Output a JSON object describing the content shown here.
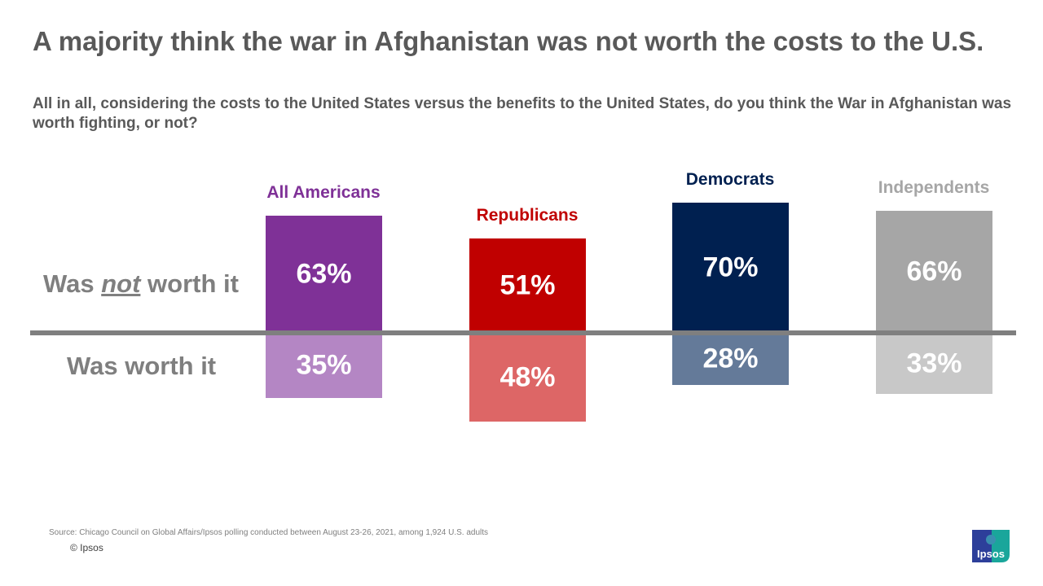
{
  "title": "A majority think the war in Afghanistan was not worth the costs to the U.S.",
  "subtitle": "All in all, considering the costs to the United States versus the benefits to the United States, do you think the War in Afghanistan was worth fighting, or not?",
  "row_labels": {
    "not_worth_prefix": "Was ",
    "not_worth_emph": "not",
    "not_worth_suffix": " worth it",
    "worth": "Was worth it"
  },
  "chart_data": {
    "type": "bar",
    "categories": [
      "All Americans",
      "Republicans",
      "Democrats",
      "Independents"
    ],
    "series": [
      {
        "name": "Was not worth it",
        "values": [
          63,
          51,
          70,
          66
        ],
        "colors": [
          "#7F3197",
          "#C00000",
          "#002050",
          "#A6A6A6"
        ]
      },
      {
        "name": "Was worth it",
        "values": [
          35,
          48,
          28,
          33
        ],
        "colors": [
          "#B486C4",
          "#DD6666",
          "#647A99",
          "#C8C8C8"
        ]
      }
    ],
    "value_labels_not_worth": [
      "63%",
      "51%",
      "70%",
      "66%"
    ],
    "value_labels_worth": [
      "35%",
      "48%",
      "28%",
      "33%"
    ],
    "category_colors": [
      "#7F3197",
      "#C00000",
      "#002050",
      "#A6A6A6"
    ],
    "layout": "diverging around a horizontal baseline"
  },
  "footer": {
    "source": "Source: Chicago Council on Global Affairs/Ipsos polling conducted between August 23-26, 2021, among 1,924 U.S. adults",
    "copyright": "© Ipsos",
    "logo_text": "Ipsos"
  }
}
